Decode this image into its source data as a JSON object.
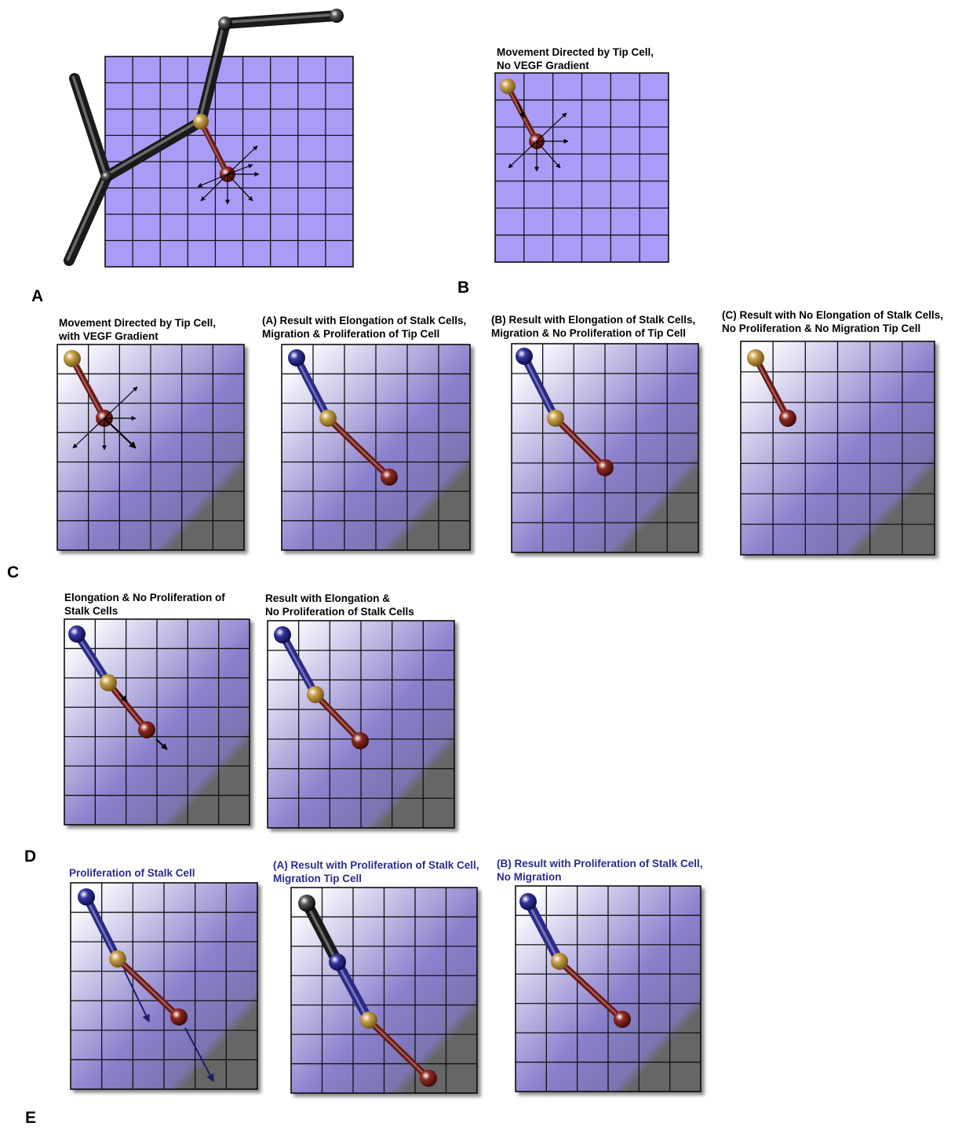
{
  "figure": {
    "section_labels": [
      "A",
      "B",
      "C",
      "D",
      "E"
    ],
    "panel_titles": {
      "b": "Movement Directed by Tip Cell,\nNo VEGF Gradient",
      "c1": "Movement Directed by Tip Cell,\nwith VEGF Gradient",
      "c2": "(A) Result with Elongation of Stalk Cells,\nMigration & Proliferation of Tip Cell",
      "c3": "(B) Result with Elongation of Stalk Cells,\nMigration & No Proliferation of Tip Cell",
      "c4": "(C) Result with No Elongation of Stalk Cells,\nNo Proliferation & No Migration Tip Cell",
      "d1": "Elongation & No Proliferation of\nStalk Cells",
      "d2": "Result with Elongation &\nNo Proliferation of Stalk Cells",
      "e1": "Proliferation of Stalk Cell",
      "e2": "(A) Result with Proliferation of Stalk Cell,\nMigration Tip Cell",
      "e3": "(B) Result with Proliferation of Stalk Cell,\nNo Migration"
    },
    "colors": {
      "grid_uniform": "#a99cf6",
      "gradient_light": "#ffffff",
      "gradient_mid": "#8a80cc",
      "gradient_dark": "#666666",
      "vessel_black": "#1a1a1a",
      "stalk_blue": "#2a2a8a",
      "tip_red": "#6e1a14",
      "joint_gold": "#c9a04a",
      "title_black": "#000000",
      "title_blue": "#2b2b8c"
    }
  }
}
